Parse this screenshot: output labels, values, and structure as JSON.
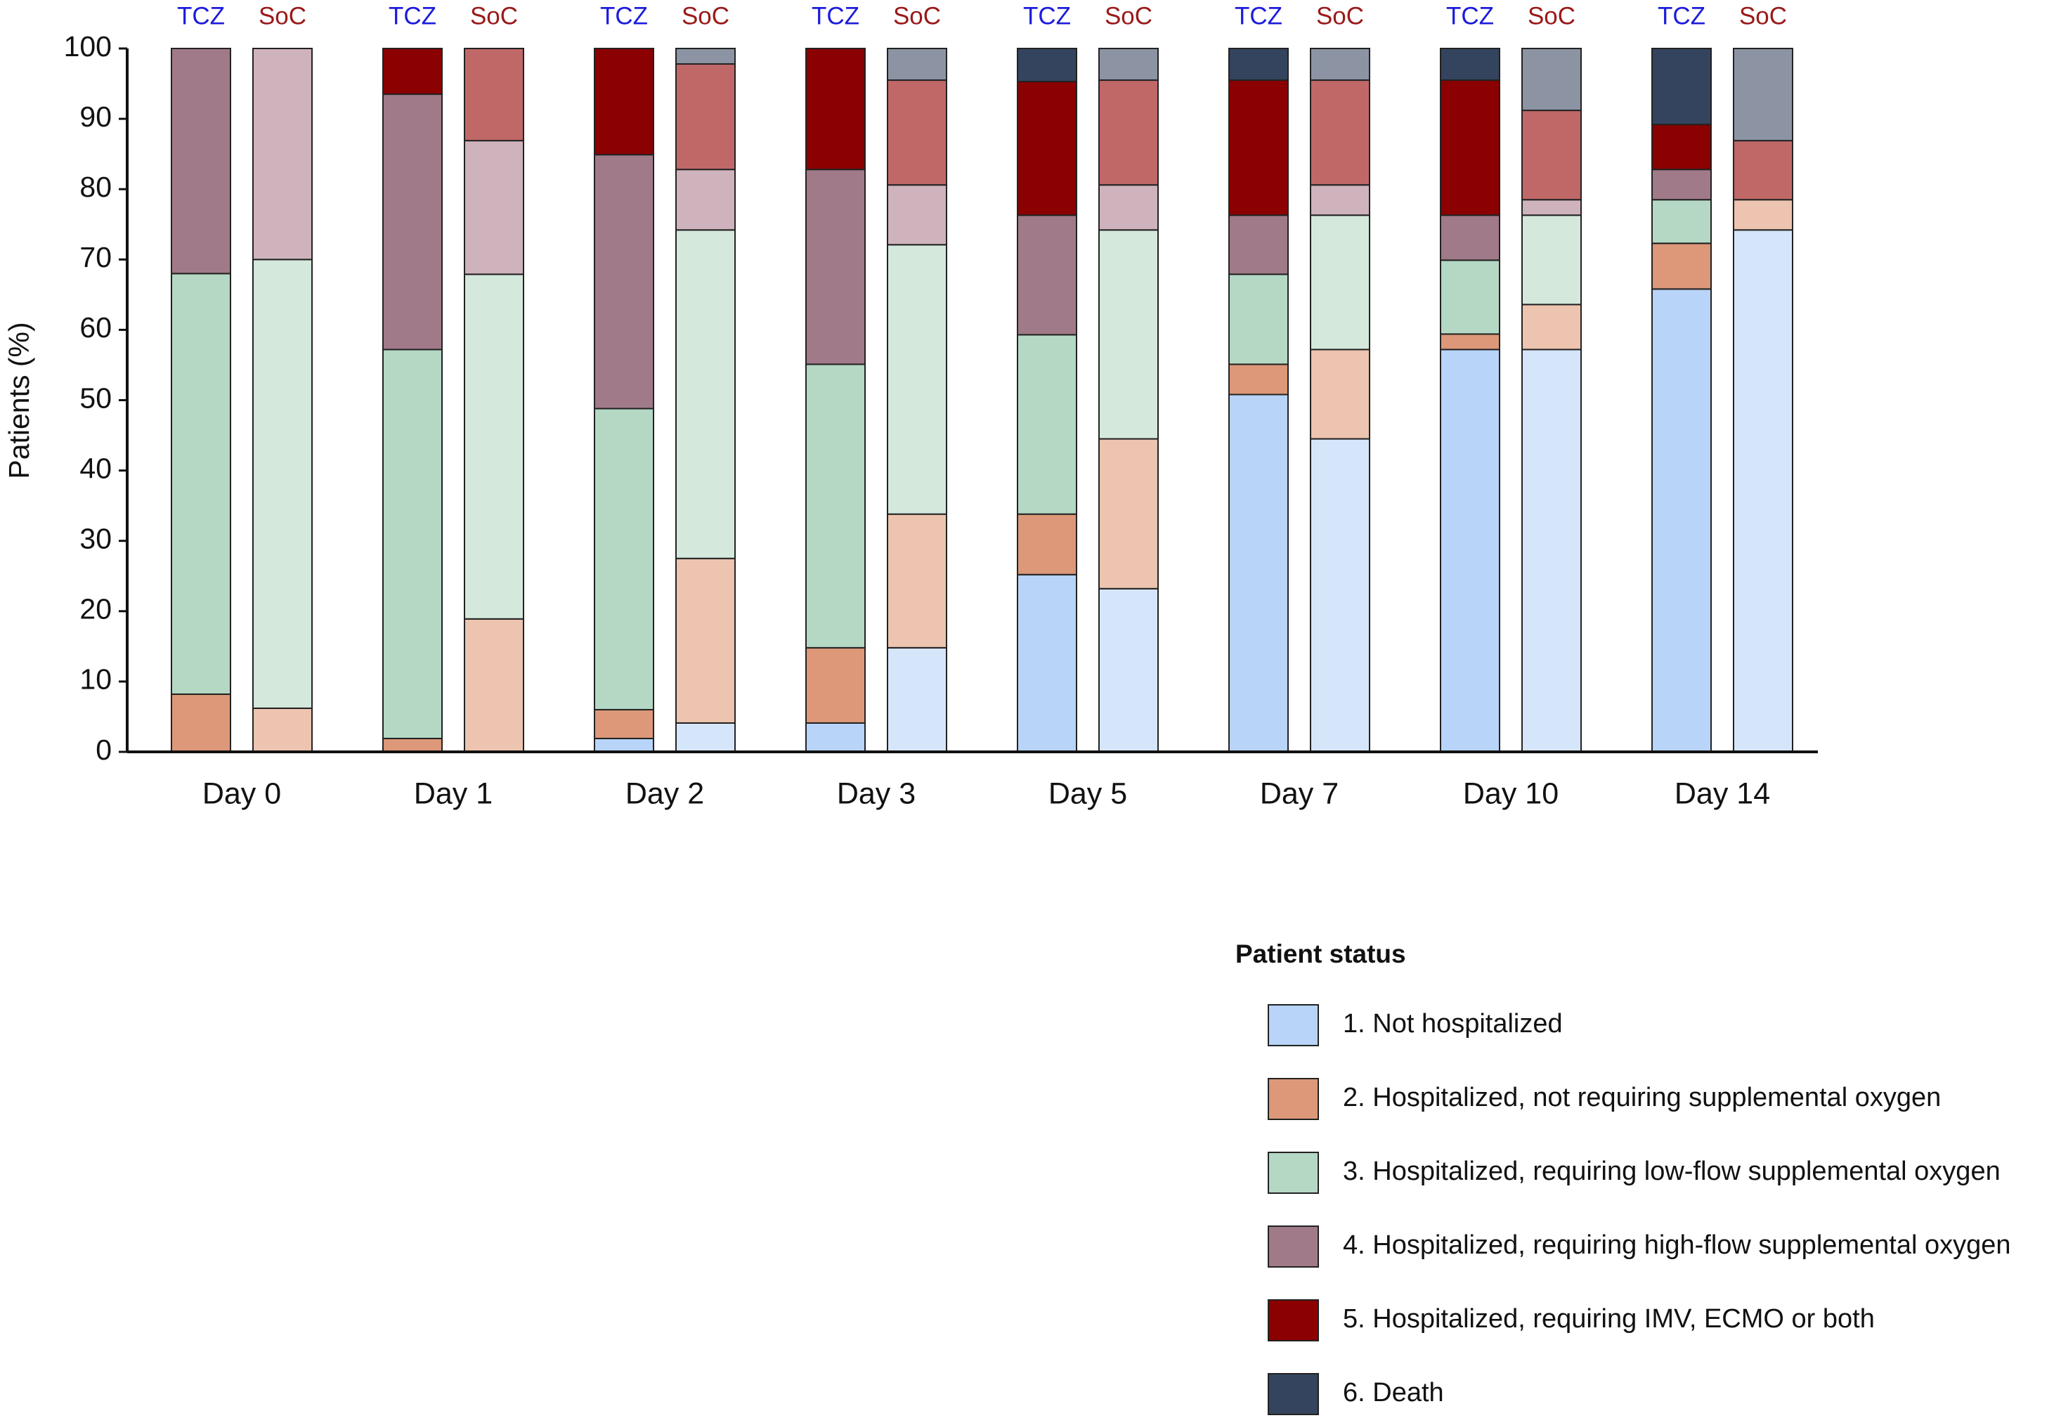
{
  "chart_data": {
    "type": "grouped-stacked-bar",
    "y_label": "Patients (%)",
    "categories": [
      "Day 0",
      "Day 1",
      "Day 2",
      "Day 3",
      "Day 5",
      "Day 7",
      "Day 10",
      "Day 14"
    ],
    "groups": [
      {
        "name": "TCZ",
        "color": "#1c1cdc"
      },
      {
        "name": "SoC",
        "color": "#9a1a1a"
      }
    ],
    "ylim": [
      0,
      100
    ],
    "yticks": [
      0,
      10,
      20,
      30,
      40,
      50,
      60,
      70,
      80,
      90,
      100
    ],
    "legend_title": "Patient status",
    "series": [
      {
        "name": "1. Not hospitalized",
        "colors": [
          "#b8d4f8",
          "#d6e6fa"
        ],
        "values": [
          [
            0,
            0,
            1.9,
            4.1,
            25.2,
            50.8,
            57.2,
            65.8
          ],
          [
            0,
            0,
            4.1,
            14.8,
            23.2,
            44.5,
            57.2,
            74.2
          ]
        ]
      },
      {
        "name": "2. Hospitalized, not requiring supplemental oxygen",
        "colors": [
          "#dc9878",
          "#ecc4b0"
        ],
        "values": [
          [
            8.2,
            1.9,
            4.1,
            10.7,
            8.6,
            4.3,
            2.2,
            6.5
          ],
          [
            6.2,
            18.9,
            23.4,
            19,
            21.3,
            12.7,
            6.4,
            4.3
          ]
        ]
      },
      {
        "name": "3. Hospitalized, requiring low-flow supplemental oxygen",
        "colors": [
          "#b4d8c4",
          "#d4e9dc"
        ],
        "values": [
          [
            59.8,
            55.3,
            42.8,
            40.3,
            25.5,
            12.8,
            10.5,
            6.2
          ],
          [
            63.8,
            49,
            46.7,
            38.3,
            29.7,
            19.1,
            12.7,
            0
          ]
        ]
      },
      {
        "name": "4. Hospitalized, requiring high-flow supplemental oxygen",
        "colors": [
          "#a07a88",
          "#cfb3bc"
        ],
        "values": [
          [
            32,
            36.3,
            36.1,
            27.7,
            17,
            8.4,
            6.4,
            4.3
          ],
          [
            30,
            19,
            8.6,
            8.5,
            6.4,
            4.3,
            2.2,
            0
          ]
        ]
      },
      {
        "name": "5. Hospitalized, requiring IMV, ECMO or both",
        "colors": [
          "#8b0000",
          "#c06868"
        ],
        "values": [
          [
            0,
            6.5,
            15.1,
            17.2,
            19,
            19.2,
            19.2,
            6.4
          ],
          [
            0,
            13.1,
            15,
            14.9,
            14.9,
            14.9,
            12.7,
            8.4
          ]
        ]
      },
      {
        "name": "6. Death",
        "colors": [
          "#34445e",
          "#8c94a4"
        ],
        "values": [
          [
            0,
            0,
            0,
            0,
            4.7,
            4.5,
            4.5,
            10.8
          ],
          [
            0,
            0,
            2.2,
            4.5,
            4.5,
            4.5,
            8.8,
            13.1
          ]
        ]
      }
    ]
  }
}
